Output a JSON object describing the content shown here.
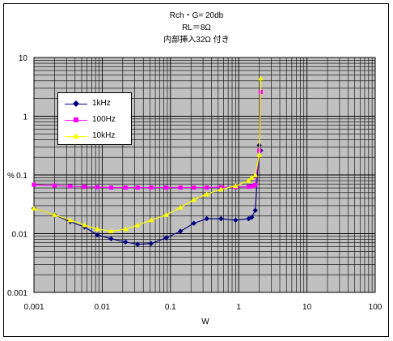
{
  "chart_data": {
    "type": "line",
    "title_lines": [
      "Rch・G= 20db",
      "RL＝8Ω",
      "内部挿入32Ω 付き"
    ],
    "xlabel": "W",
    "ylabel": "%",
    "x_scale": "log",
    "y_scale": "log",
    "xlim": [
      0.001,
      100
    ],
    "ylim": [
      0.001,
      10
    ],
    "x_ticks": [
      "0.001",
      "0.01",
      "0.1",
      "1",
      "10",
      "100"
    ],
    "y_ticks": [
      "10",
      "1",
      "0.1",
      "0.01",
      "0.001"
    ],
    "grid": true,
    "legend_position": "upper-left",
    "series": [
      {
        "name": "1kHz",
        "color": "#000080",
        "marker": "diamond",
        "points": [
          [
            0.001,
            0.027
          ],
          [
            0.002,
            0.021
          ],
          [
            0.0034,
            0.016
          ],
          [
            0.0055,
            0.013
          ],
          [
            0.0085,
            0.0095
          ],
          [
            0.0135,
            0.0082
          ],
          [
            0.022,
            0.0072
          ],
          [
            0.033,
            0.0066
          ],
          [
            0.052,
            0.0068
          ],
          [
            0.087,
            0.0085
          ],
          [
            0.14,
            0.011
          ],
          [
            0.22,
            0.015
          ],
          [
            0.34,
            0.018
          ],
          [
            0.55,
            0.018
          ],
          [
            0.9,
            0.017
          ],
          [
            1.4,
            0.018
          ],
          [
            1.55,
            0.019
          ],
          [
            1.75,
            0.025
          ],
          [
            2.0,
            0.32
          ],
          [
            2.1,
            0.26
          ]
        ]
      },
      {
        "name": "100Hz",
        "color": "#ff00ff",
        "marker": "square",
        "points": [
          [
            0.001,
            0.068
          ],
          [
            0.002,
            0.066
          ],
          [
            0.0034,
            0.064
          ],
          [
            0.0055,
            0.063
          ],
          [
            0.0085,
            0.062
          ],
          [
            0.0135,
            0.061
          ],
          [
            0.022,
            0.061
          ],
          [
            0.033,
            0.061
          ],
          [
            0.052,
            0.061
          ],
          [
            0.087,
            0.061
          ],
          [
            0.14,
            0.061
          ],
          [
            0.22,
            0.061
          ],
          [
            0.34,
            0.061
          ],
          [
            0.55,
            0.062
          ],
          [
            0.9,
            0.062
          ],
          [
            1.4,
            0.063
          ],
          [
            1.55,
            0.064
          ],
          [
            1.75,
            0.067
          ],
          [
            2.0,
            0.26
          ],
          [
            2.1,
            2.6
          ]
        ]
      },
      {
        "name": "10kHz",
        "color": "#ffff00",
        "marker": "triangle",
        "points": [
          [
            0.001,
            0.027
          ],
          [
            0.002,
            0.021
          ],
          [
            0.0034,
            0.017
          ],
          [
            0.0055,
            0.014
          ],
          [
            0.0085,
            0.012
          ],
          [
            0.0135,
            0.011
          ],
          [
            0.022,
            0.012
          ],
          [
            0.033,
            0.014
          ],
          [
            0.052,
            0.017
          ],
          [
            0.087,
            0.021
          ],
          [
            0.14,
            0.028
          ],
          [
            0.22,
            0.038
          ],
          [
            0.34,
            0.047
          ],
          [
            0.55,
            0.057
          ],
          [
            0.9,
            0.065
          ],
          [
            1.4,
            0.08
          ],
          [
            1.55,
            0.09
          ],
          [
            1.75,
            0.1
          ],
          [
            2.0,
            0.22
          ],
          [
            2.1,
            4.4
          ]
        ]
      }
    ]
  }
}
